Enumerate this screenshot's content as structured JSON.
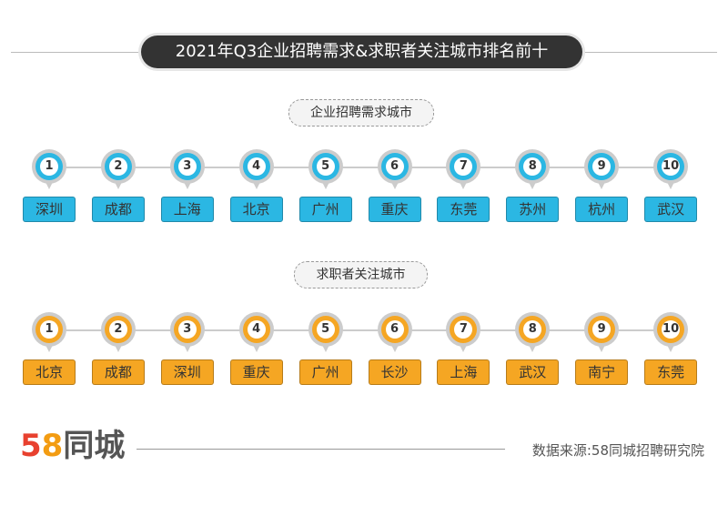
{
  "title": "2021年Q3企业招聘需求&求职者关注城市排名前十",
  "colors": {
    "employer": "#2bb7e3",
    "seeker": "#f5a623",
    "title_bg": "#333333"
  },
  "employer": {
    "label": "企业招聘需求城市",
    "cities": [
      "深圳",
      "成都",
      "上海",
      "北京",
      "广州",
      "重庆",
      "东莞",
      "苏州",
      "杭州",
      "武汉"
    ]
  },
  "seeker": {
    "label": "求职者关注城市",
    "cities": [
      "北京",
      "成都",
      "深圳",
      "重庆",
      "广州",
      "长沙",
      "上海",
      "武汉",
      "南宁",
      "东莞"
    ]
  },
  "footer": {
    "logo_num": "58",
    "logo_text": "同城",
    "source": "数据来源:58同城招聘研究院"
  }
}
